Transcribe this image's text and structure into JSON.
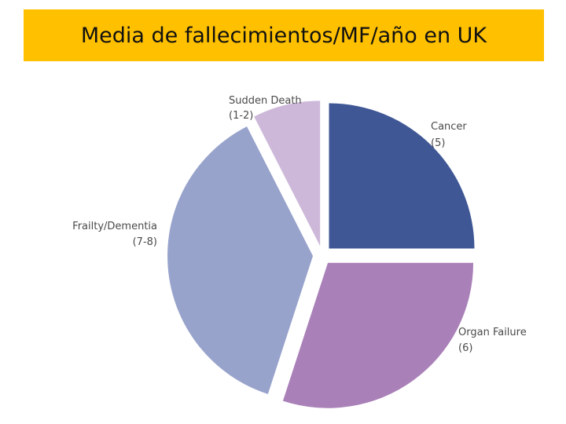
{
  "title": "Media de fallecimientos/MF/año en UK",
  "chart_data": {
    "type": "pie",
    "slices": [
      {
        "label": "Cancer",
        "value_label": "(5)",
        "value": 5,
        "color": "#3f5795"
      },
      {
        "label": "Organ Failure",
        "value_label": "(6)",
        "value": 6,
        "color": "#a980b8"
      },
      {
        "label": "Frailty/Dementia",
        "value_label": "(7-8)",
        "value": 7.5,
        "color": "#98a3cc"
      },
      {
        "label": "Sudden Death",
        "value_label": "(1-2)",
        "value": 1.5,
        "color": "#cdb8d9"
      }
    ]
  }
}
